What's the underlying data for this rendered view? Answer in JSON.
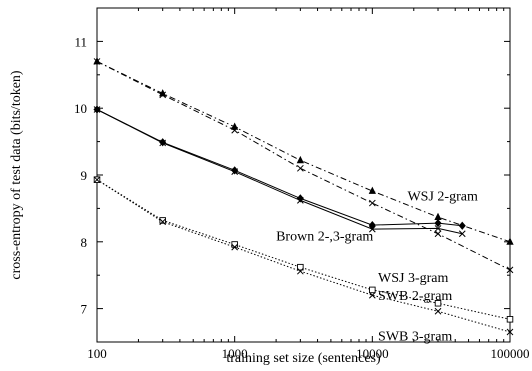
{
  "chart_data": {
    "type": "line",
    "xlabel": "training set size (sentences)",
    "ylabel": "cross-entropy of test data (bits/token)",
    "xscale": "log",
    "xlim": [
      100,
      100000
    ],
    "ylim": [
      6.5,
      11.5
    ],
    "xticks": [
      100,
      1000,
      10000,
      100000
    ],
    "xtick_labels": [
      "100",
      "1000",
      "10000",
      "100000"
    ],
    "yticks": [
      7,
      8,
      9,
      10,
      11
    ],
    "ytick_labels": [
      "7",
      "8",
      "9",
      "10",
      "11"
    ],
    "grid": false,
    "series": [
      {
        "name": "WSJ 2-gram",
        "line_style": "dash-dot",
        "marker": "triangle",
        "x": [
          100,
          300,
          1000,
          3000,
          10000,
          30000,
          100000
        ],
        "y": [
          10.7,
          10.22,
          9.72,
          9.22,
          8.76,
          8.37,
          8.0
        ]
      },
      {
        "name": "WSJ 3-gram",
        "line_style": "dash-dot",
        "marker": "x",
        "x": [
          100,
          300,
          1000,
          3000,
          10000,
          30000,
          100000
        ],
        "y": [
          10.7,
          10.2,
          9.67,
          9.1,
          8.58,
          8.12,
          7.58
        ]
      },
      {
        "name": "Brown 2-gram",
        "line_style": "solid",
        "marker": "diamond",
        "x": [
          100,
          300,
          1000,
          3000,
          10000,
          30000,
          45000
        ],
        "y": [
          9.98,
          9.49,
          9.07,
          8.65,
          8.25,
          8.28,
          8.24
        ]
      },
      {
        "name": "Brown 3-gram",
        "line_style": "solid",
        "marker": "x",
        "x": [
          100,
          300,
          1000,
          3000,
          10000,
          30000,
          45000
        ],
        "y": [
          9.98,
          9.48,
          9.05,
          8.62,
          8.19,
          8.2,
          8.12
        ]
      },
      {
        "name": "SWB 2-gram",
        "line_style": "dotted",
        "marker": "square",
        "x": [
          100,
          300,
          1000,
          3000,
          10000,
          30000,
          100000
        ],
        "y": [
          8.93,
          8.32,
          7.96,
          7.62,
          7.28,
          7.08,
          6.84
        ]
      },
      {
        "name": "SWB 3-gram",
        "line_style": "dotted",
        "marker": "x",
        "x": [
          100,
          300,
          1000,
          3000,
          10000,
          30000,
          100000
        ],
        "y": [
          8.93,
          8.3,
          7.92,
          7.56,
          7.2,
          6.96,
          6.65
        ]
      }
    ],
    "annotations": [
      {
        "text": "WSJ 2-gram",
        "x": 18000,
        "y": 8.62
      },
      {
        "text": "Brown 2-,3-gram",
        "x": 2000,
        "y": 8.02
      },
      {
        "text": "WSJ 3-gram",
        "x": 11000,
        "y": 7.4
      },
      {
        "text": "SWB 2-gram",
        "x": 11000,
        "y": 7.13
      },
      {
        "text": "SWB 3-gram",
        "x": 11000,
        "y": 6.52
      }
    ]
  }
}
